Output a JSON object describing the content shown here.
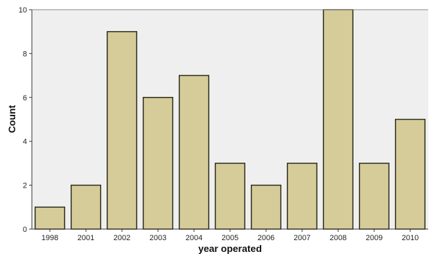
{
  "chart_data": {
    "type": "bar",
    "categories": [
      "1998",
      "2001",
      "2002",
      "2003",
      "2004",
      "2005",
      "2006",
      "2007",
      "2008",
      "2009",
      "2010"
    ],
    "values": [
      1,
      2,
      9,
      6,
      7,
      3,
      2,
      3,
      10,
      3,
      5
    ],
    "xlabel": "year operated",
    "ylabel": "Count",
    "ylim": [
      0,
      10
    ],
    "yticks": [
      "0",
      "2",
      "4",
      "6",
      "8",
      "10"
    ],
    "grid": false,
    "colors": {
      "bar_fill": "#d6cc99",
      "bar_stroke": "#2b2b1a",
      "plot_background": "#efefef"
    }
  }
}
